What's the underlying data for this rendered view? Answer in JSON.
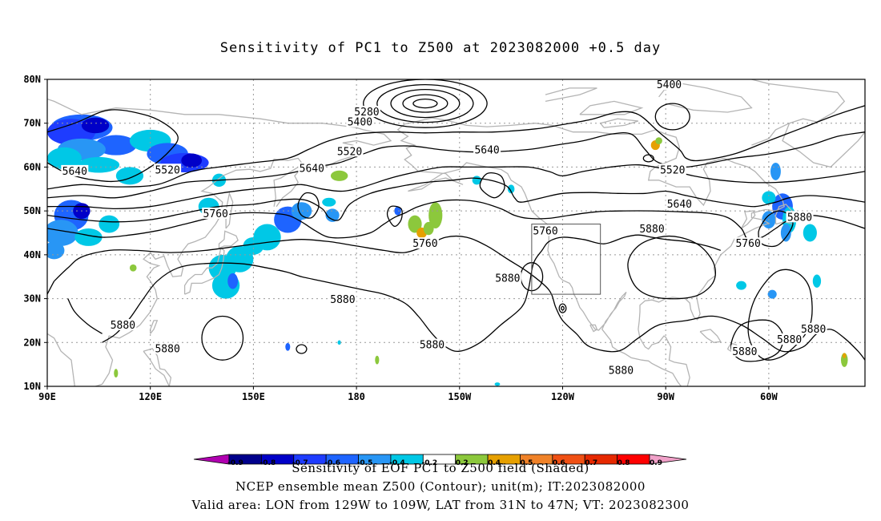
{
  "title": "Sensitivity of PC1 to Z500 at 2023082000 +0.5 day",
  "lat_labels": [
    "80N",
    "70N",
    "60N",
    "50N",
    "40N",
    "30N",
    "20N",
    "10N"
  ],
  "lon_labels": [
    "90E",
    "120E",
    "150E",
    "180",
    "150W",
    "120W",
    "90W",
    "60W"
  ],
  "contour_labels": [
    {
      "text": "5280",
      "lon": 183,
      "lat": 72.5
    },
    {
      "text": "5400",
      "lon": 181,
      "lat": 70.2
    },
    {
      "text": "5400",
      "lon": 271,
      "lat": 78.7
    },
    {
      "text": "5520",
      "lon": 178,
      "lat": 63.5
    },
    {
      "text": "5520",
      "lon": 125,
      "lat": 59.3
    },
    {
      "text": "5520",
      "lon": 272,
      "lat": 59.3
    },
    {
      "text": "5640",
      "lon": 98,
      "lat": 59.0
    },
    {
      "text": "5640",
      "lon": 167,
      "lat": 59.6
    },
    {
      "text": "5640",
      "lon": 218,
      "lat": 63.8
    },
    {
      "text": "5640",
      "lon": 274,
      "lat": 51.5
    },
    {
      "text": "5760",
      "lon": 139,
      "lat": 49.3
    },
    {
      "text": "5760",
      "lon": 200,
      "lat": 42.5
    },
    {
      "text": "5760",
      "lon": 235,
      "lat": 45.4
    },
    {
      "text": "5760",
      "lon": 294,
      "lat": 42.5
    },
    {
      "text": "5880",
      "lon": 266,
      "lat": 45.8
    },
    {
      "text": "5880",
      "lon": 309,
      "lat": 48.5
    },
    {
      "text": "5880",
      "lon": 224,
      "lat": 34.6
    },
    {
      "text": "5880",
      "lon": 176,
      "lat": 29.7
    },
    {
      "text": "5880",
      "lon": 112,
      "lat": 23.9
    },
    {
      "text": "5880",
      "lon": 125,
      "lat": 18.5
    },
    {
      "text": "5880",
      "lon": 202,
      "lat": 19.4
    },
    {
      "text": "5880",
      "lon": 257,
      "lat": 13.6
    },
    {
      "text": "5880",
      "lon": 293,
      "lat": 17.9
    },
    {
      "text": "5880",
      "lon": 306,
      "lat": 20.6
    },
    {
      "text": "5880",
      "lon": 313,
      "lat": 23.0
    }
  ],
  "valid_box": {
    "lon_min": 231,
    "lon_max": 251,
    "lat_min": 31,
    "lat_max": 47
  },
  "colorbar": {
    "ticks": [
      "-0.9",
      "-0.8",
      "-0.7",
      "-0.6",
      "-0.5",
      "-0.4",
      "-0.2",
      "0.2",
      "0.4",
      "0.5",
      "0.6",
      "0.7",
      "0.8",
      "0.9"
    ],
    "colors": [
      "#b000b0",
      "#00008c",
      "#0000c8",
      "#1e3cff",
      "#1e64ff",
      "#2896f5",
      "#00c8e6",
      "#ffffff",
      "#8cc83c",
      "#e6a000",
      "#f08228",
      "#f05014",
      "#e62800",
      "#ff0000",
      "#f0a0c8"
    ]
  },
  "footer": {
    "line1": "Sensitivity of EOF PC1 to Z500 field (Shaded)",
    "line2": "NCEP ensemble mean Z500 (Contour); unit(m); IT:2023082000",
    "line3": "Valid area: LON from 129W to 109W, LAT from 31N to 47N; VT: 2023082300"
  }
}
